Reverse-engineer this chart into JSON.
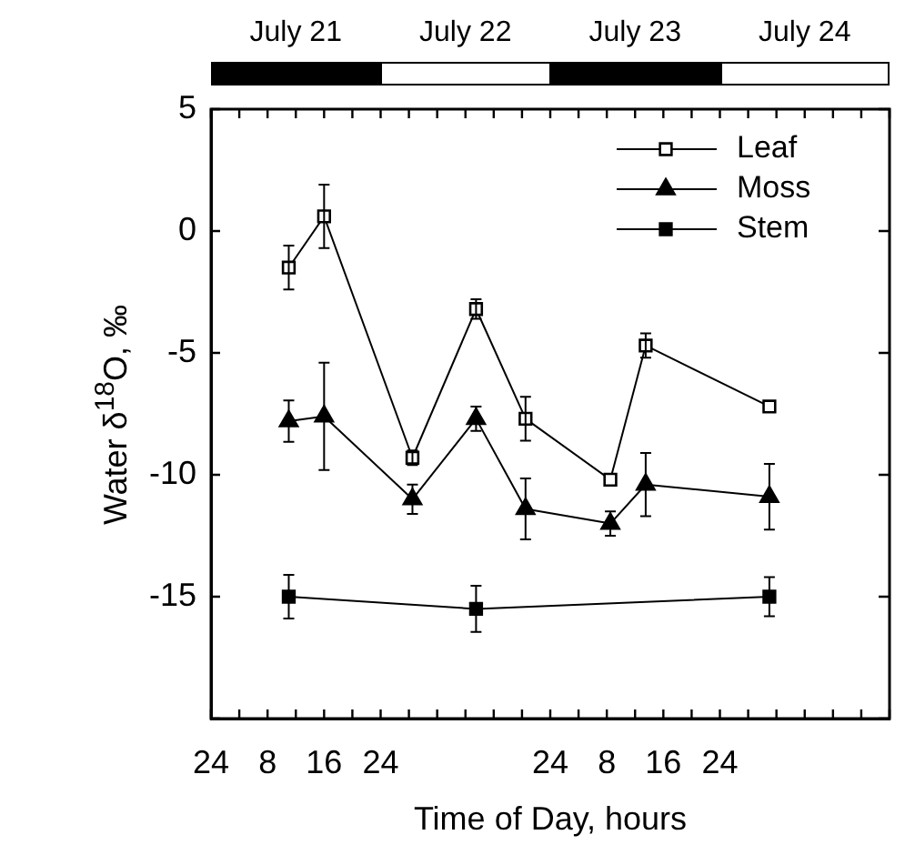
{
  "chart_data": {
    "type": "line",
    "xlabel": "Time of Day, hours",
    "ylabel": "Water δ$^{18}$O, ‰",
    "xlim": [
      "--07-21T00:00",
      "--07-25T00:00"
    ],
    "xticks": [
      {
        "value": "--07-21T00:00",
        "label": "24"
      },
      {
        "value": "--07-21T04:00",
        "label": null
      },
      {
        "value": "--07-21T08:00",
        "label": "8"
      },
      {
        "value": "--07-21T12:00",
        "label": null
      },
      {
        "value": "--07-21T16:00",
        "label": "16"
      },
      {
        "value": "--07-21T20:00",
        "label": null
      },
      {
        "value": "--07-22T00:00",
        "label": "24"
      },
      {
        "value": "--07-22T04:00",
        "label": null
      },
      {
        "value": "--07-22T08:00",
        "label": null
      },
      {
        "value": "--07-22T12:00",
        "label": null
      },
      {
        "value": "--07-22T16:00",
        "label": null
      },
      {
        "value": "--07-22T20:00",
        "label": null
      },
      {
        "value": "--07-23T00:00",
        "label": "24"
      },
      {
        "value": "--07-23T04:00",
        "label": null
      },
      {
        "value": "--07-23T08:00",
        "label": "8"
      },
      {
        "value": "--07-23T12:00",
        "label": null
      },
      {
        "value": "--07-23T16:00",
        "label": "16"
      },
      {
        "value": "--07-23T20:00",
        "label": null
      },
      {
        "value": "--07-24T00:00",
        "label": "24"
      },
      {
        "value": "--07-24T04:00",
        "label": null
      },
      {
        "value": "--07-24T08:00",
        "label": null
      },
      {
        "value": "--07-24T12:00",
        "label": null
      },
      {
        "value": "--07-24T16:00",
        "label": null
      },
      {
        "value": "--07-24T20:00",
        "label": null
      },
      {
        "value": "--07-25T00:00",
        "label": null
      }
    ],
    "ylim": [
      -20,
      5
    ],
    "yticks": [
      5,
      0,
      -5,
      -10,
      -15,
      {
        "value": -20,
        "label": null
      }
    ],
    "legend": "top right",
    "annotations": [
      "July 21",
      "July 22",
      "July 23",
      "July 24"
    ],
    "series": [
      {
        "name": "Leaf",
        "color": "#000000",
        "marker": "square-open",
        "x": [
          "--07-21T11:00",
          "--07-21T16:00",
          "--07-22T04:30",
          "--07-22T13:30",
          "--07-22T20:30",
          "--07-23T08:30",
          "--07-23T13:30",
          "--07-24T07:00"
        ],
        "values": [
          -1.5,
          0.6,
          -9.3,
          -3.2,
          -7.7,
          -10.2,
          -4.7,
          -7.2
        ],
        "errors": [
          0.9,
          1.3,
          0.3,
          0.4,
          0.9,
          null,
          0.5,
          null
        ]
      },
      {
        "name": "Moss",
        "color": "#000000",
        "marker": "triangle",
        "x": [
          "--07-21T11:00",
          "--07-21T16:00",
          "--07-22T04:30",
          "--07-22T13:30",
          "--07-22T20:30",
          "--07-23T08:30",
          "--07-23T13:30",
          "--07-24T07:00"
        ],
        "values": [
          -7.8,
          -7.6,
          -11.0,
          -7.7,
          -11.4,
          -12.0,
          -10.4,
          -10.9
        ],
        "errors": [
          0.85,
          2.2,
          0.6,
          0.5,
          1.25,
          0.5,
          1.3,
          1.35
        ]
      },
      {
        "name": "Stem",
        "color": "#000000",
        "marker": "square",
        "x": [
          "--07-21T11:00",
          "--07-22T13:30",
          "--07-24T07:00"
        ],
        "values": [
          -15.0,
          -15.5,
          -15.0
        ],
        "errors": [
          0.9,
          0.95,
          0.8
        ]
      }
    ]
  }
}
